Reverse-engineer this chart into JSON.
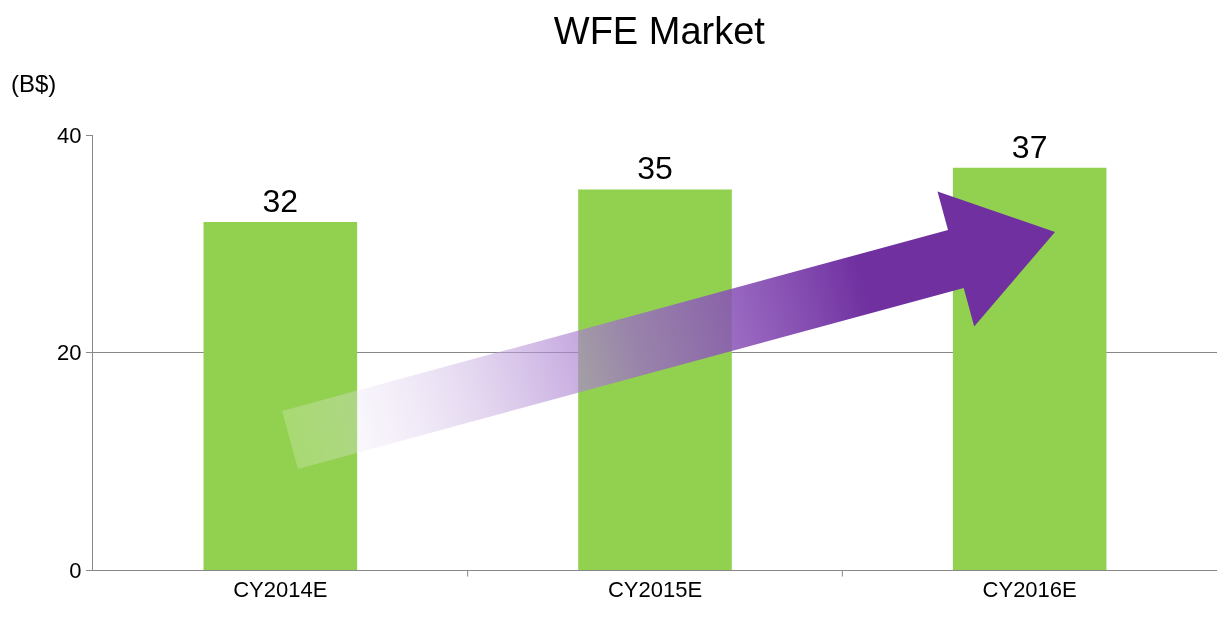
{
  "chart_data": {
    "type": "bar",
    "title": "WFE Market",
    "ylabel": "(B$)",
    "categories": [
      "CY2014E",
      "CY2015E",
      "CY2016E"
    ],
    "values": [
      32,
      35,
      37
    ],
    "color": "#92d050",
    "ylim": [
      0,
      40
    ],
    "yticks": [
      0,
      20,
      40
    ],
    "grid": "y",
    "data_labels": true,
    "legend": false
  }
}
